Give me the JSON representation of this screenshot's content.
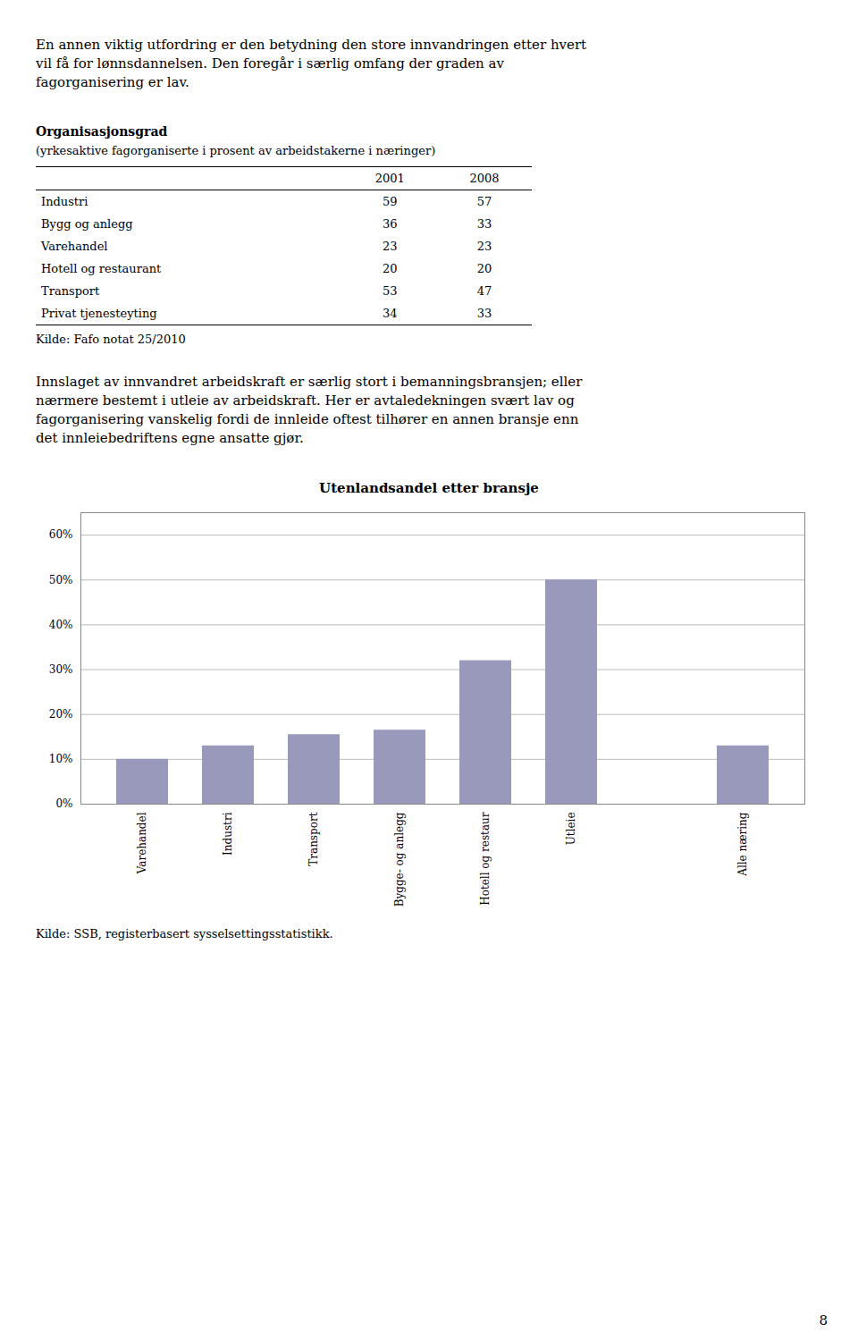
{
  "chart_data": [
    {
      "type": "table",
      "text_before": "En annen viktig utfordring er den betydning den store innvandringen etter hvert\nvil få for lønnsdannelsen. Den foregår i særlig omfang der graden av\nfagorganisering er lav.",
      "title": "Organisasjonsgrad",
      "subtitle": "(yrkesaktive fagorganiserte i prosent av arbeidstakerne i næringer)",
      "categories": [
        "Industri",
        "Bygg og anlegg",
        "Varehandel",
        "Hotell og restaurant",
        "Transport",
        "Privat tjenesteyting"
      ],
      "series": [
        {
          "name": "2001",
          "values": [
            59,
            36,
            23,
            20,
            53,
            34
          ]
        },
        {
          "name": "2008",
          "values": [
            57,
            33,
            23,
            20,
            47,
            33
          ]
        }
      ],
      "source": "Kilde: Fafo notat 25/2010"
    },
    {
      "type": "bar",
      "text_before": "Innslaget av innvandret arbeidskraft er særlig stort i bemanningsbransjen; eller\nnærmere bestemt i utleie av arbeidskraft. Her er avtaledekningen svært lav og\nfagorganisering vanskelig fordi de innleide oftest tilhører en annen bransje enn\ndet innleiebedriftens egne ansatte gjør.",
      "title": "Utenlandsandel etter bransje",
      "categories": [
        "Varehandel",
        "Industri",
        "Transport",
        "Bygge- og anlegg",
        "Hotell og restaur",
        "Utleie",
        null,
        "Alle næring"
      ],
      "values": [
        0.1,
        0.13,
        0.155,
        0.165,
        0.32,
        0.5,
        null,
        0.13
      ],
      "color": "#9999bb",
      "ylim": [
        0,
        0.65
      ],
      "yticks": [
        {
          "value": 0.0,
          "label": "0%"
        },
        {
          "value": 0.1,
          "label": "10%"
        },
        {
          "value": 0.2,
          "label": "20%"
        },
        {
          "value": 0.3,
          "label": "30%"
        },
        {
          "value": 0.4,
          "label": "40%"
        },
        {
          "value": 0.5,
          "label": "50%"
        },
        {
          "value": 0.6,
          "label": "60%"
        }
      ],
      "grid": true,
      "source": "Kilde: SSB, registerbasert sysselsettingsstatistikk.",
      "page_number": "8"
    }
  ]
}
